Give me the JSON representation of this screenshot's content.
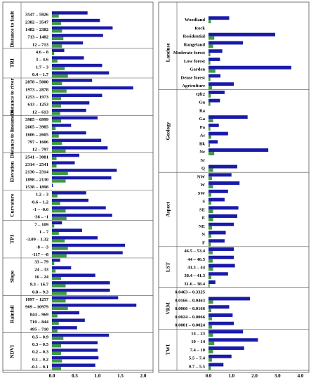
{
  "colors": {
    "series1": "#1a1aa8",
    "series2": "#3e9a3e",
    "frame": "#555555"
  },
  "chart_data": [
    {
      "type": "bar",
      "orientation": "horizontal",
      "xlim": [
        0,
        2.0
      ],
      "xticks": [
        "0.0",
        "0.5",
        "1.0",
        "1.5",
        "2.0"
      ],
      "series": [
        {},
        {}
      ],
      "groups": [
        {
          "name": "Distance to fault",
          "items": [
            {
              "label": "3547 – 5826",
              "values": [
                0.78,
                0.15
              ]
            },
            {
              "label": "2382 – 3547",
              "values": [
                1.05,
                0.2
              ]
            },
            {
              "label": "1482 – 2382",
              "values": [
                1.33,
                0.22
              ]
            },
            {
              "label": "713 – 1482",
              "values": [
                1.12,
                0.25
              ]
            },
            {
              "label": "12 – 713",
              "values": [
                0.68,
                0.22
              ]
            }
          ]
        },
        {
          "name": "TRI",
          "items": [
            {
              "label": "4.6 – 8",
              "values": [
                0.27,
                0.05
              ]
            },
            {
              "label": "3 – 4.6",
              "values": [
                0.7,
                0.12
              ]
            },
            {
              "label": "1.7 – 3",
              "values": [
                1.1,
                0.28
              ]
            },
            {
              "label": "0.4 – 1.7",
              "values": [
                1.25,
                0.35
              ]
            }
          ]
        },
        {
          "name": "Distance to river",
          "items": [
            {
              "label": "2878 – 5000",
              "values": [
                0.88,
                0.22
              ]
            },
            {
              "label": "1973 – 2878",
              "values": [
                1.78,
                0.32
              ]
            },
            {
              "label": "1253 – 1973",
              "values": [
                1.1,
                0.2
              ]
            },
            {
              "label": "613 – 1253",
              "values": [
                0.82,
                0.2
              ]
            },
            {
              "label": "12 – 613",
              "values": [
                0.75,
                0.18
              ]
            }
          ]
        },
        {
          "name": "Distance to lineament",
          "items": [
            {
              "label": "3985 – 6999",
              "values": [
                1.0,
                0.2
              ]
            },
            {
              "label": "2605 – 3985",
              "values": [
                0.42,
                0.08
              ]
            },
            {
              "label": "1606 – 2605",
              "values": [
                0.75,
                0.15
              ]
            },
            {
              "label": "797 – 1606",
              "values": [
                1.08,
                0.22
              ]
            },
            {
              "label": "12 – 797",
              "values": [
                1.22,
                0.3
              ]
            }
          ]
        },
        {
          "name": "Elevation",
          "items": [
            {
              "label": "2541 – 3081",
              "values": [
                0.6,
                0.1
              ]
            },
            {
              "label": "2314 – 2541",
              "values": [
                0.5,
                0.1
              ]
            },
            {
              "label": "2130 – 2314",
              "values": [
                1.42,
                0.35
              ]
            },
            {
              "label": "1898 – 2130",
              "values": [
                1.3,
                0.3
              ]
            },
            {
              "label": "1538 – 1898",
              "values": [
                0.02,
                0.0
              ]
            }
          ]
        },
        {
          "name": "Curvature",
          "items": [
            {
              "label": "1.2 – 3",
              "values": [
                0.75,
                0.12
              ]
            },
            {
              "label": "-0.6 – 1.2",
              "values": [
                0.8,
                0.18
              ]
            },
            {
              "label": "-1 – -0.6",
              "values": [
                1.18,
                0.3
              ]
            },
            {
              "label": "-36 – -1",
              "values": [
                1.32,
                0.32
              ]
            }
          ]
        },
        {
          "name": "TPI",
          "items": [
            {
              "label": "7 – 109",
              "values": [
                0.22,
                0.05
              ]
            },
            {
              "label": "1 – 7",
              "values": [
                0.66,
                0.15
              ]
            },
            {
              "label": "-3.09 – 1.32",
              "values": [
                1.0,
                0.28
              ]
            },
            {
              "label": "-8 – -3",
              "values": [
                1.6,
                0.35
              ]
            },
            {
              "label": "-117 – -8",
              "values": [
                1.55,
                0.32
              ]
            }
          ]
        },
        {
          "name": "Slope",
          "items": [
            {
              "label": "33 – 79",
              "values": [
                0.18,
                0.05
              ]
            },
            {
              "label": "24 – 33",
              "values": [
                0.42,
                0.08
              ]
            },
            {
              "label": "16 – 24",
              "values": [
                0.95,
                0.2
              ]
            },
            {
              "label": "9.3 – 16.7",
              "values": [
                1.27,
                0.3
              ]
            },
            {
              "label": "0.8 – 9.3",
              "values": [
                1.27,
                0.32
              ]
            }
          ]
        },
        {
          "name": "Rainfall",
          "items": [
            {
              "label": "1097 – 1257",
              "values": [
                1.45,
                0.3
              ]
            },
            {
              "label": "969 – 10979",
              "values": [
                1.85,
                0.35
              ]
            },
            {
              "label": "844 – 969",
              "values": [
                0.6,
                0.12
              ]
            },
            {
              "label": "710 – 844",
              "values": [
                0.72,
                0.15
              ]
            },
            {
              "label": "495 – 710",
              "values": [
                0.55,
                0.12
              ]
            }
          ]
        },
        {
          "name": "NDVI",
          "items": [
            {
              "label": "0.5 – 0.9",
              "values": [
                1.25,
                0.25
              ]
            },
            {
              "label": "0.3 – 0.5",
              "values": [
                1.0,
                0.2
              ]
            },
            {
              "label": "0.2 – 0.3",
              "values": [
                1.0,
                0.2
              ]
            },
            {
              "label": "0.1 – 0.2",
              "values": [
                1.02,
                0.22
              ]
            },
            {
              "label": "-0.1 – 0.1",
              "values": [
                0.95,
                0.2
              ]
            }
          ]
        }
      ]
    },
    {
      "type": "bar",
      "orientation": "horizontal",
      "xlim": [
        0,
        4.0
      ],
      "xticks": [
        "0.0",
        "1.0",
        "2.0",
        "3.0",
        "4.0"
      ],
      "series": [
        {},
        {}
      ],
      "groups": [
        {
          "name": "Landuse",
          "items": [
            {
              "label": "Woodland",
              "values": [
                0.9,
                0.1
              ]
            },
            {
              "label": "Rock",
              "values": [
                0.0,
                0.0
              ]
            },
            {
              "label": "Residential",
              "values": [
                2.9,
                0.25
              ]
            },
            {
              "label": "Rangeland",
              "values": [
                1.5,
                0.2
              ]
            },
            {
              "label": "Moderate forest",
              "values": [
                0.6,
                0.08
              ]
            },
            {
              "label": "Low forest",
              "values": [
                0.5,
                0.08
              ]
            },
            {
              "label": "Garden",
              "values": [
                3.6,
                0.3
              ]
            },
            {
              "label": "Dense forest",
              "values": [
                0.52,
                0.08
              ]
            },
            {
              "label": "Agriculture",
              "values": [
                1.1,
                0.15
              ]
            }
          ]
        },
        {
          "name": "Geology",
          "items": [
            {
              "label": "Qft2",
              "values": [
                0.7,
                0.1
              ]
            },
            {
              "label": "Gu",
              "values": [
                0.5,
                0.08
              ]
            },
            {
              "label": "Ra",
              "values": [
                0.0,
                0.0
              ]
            },
            {
              "label": "Ga",
              "values": [
                1.7,
                0.2
              ]
            },
            {
              "label": "Pa",
              "values": [
                0.45,
                0.08
              ]
            },
            {
              "label": "As",
              "values": [
                0.85,
                0.12
              ]
            },
            {
              "label": "Bk",
              "values": [
                0.4,
                0.06
              ]
            },
            {
              "label": "Ne",
              "values": [
                2.6,
                0.25
              ]
            },
            {
              "label": "Sr",
              "values": [
                0.0,
                0.0
              ]
            },
            {
              "label": "Q",
              "values": [
                1.25,
                0.2
              ]
            }
          ]
        },
        {
          "name": "Aspect",
          "items": [
            {
              "label": "NW",
              "values": [
                1.0,
                0.15
              ]
            },
            {
              "label": "W",
              "values": [
                1.35,
                0.2
              ]
            },
            {
              "label": "SW",
              "values": [
                0.85,
                0.12
              ]
            },
            {
              "label": "S",
              "values": [
                0.7,
                0.12
              ]
            },
            {
              "label": "SE",
              "values": [
                1.3,
                0.2
              ]
            },
            {
              "label": "E",
              "values": [
                1.25,
                0.2
              ]
            },
            {
              "label": "NE",
              "values": [
                1.1,
                0.15
              ]
            },
            {
              "label": "N",
              "values": [
                0.75,
                0.12
              ]
            },
            {
              "label": "F",
              "values": [
                0.7,
                0.1
              ]
            }
          ]
        },
        {
          "name": "LST",
          "items": [
            {
              "label": "46.5 – 53.4",
              "values": [
                1.1,
                0.18
              ]
            },
            {
              "label": "44 – 46.5",
              "values": [
                1.1,
                0.18
              ]
            },
            {
              "label": "41.3 – 44",
              "values": [
                1.15,
                0.2
              ]
            },
            {
              "label": "38.4 – 41.3",
              "values": [
                0.85,
                0.12
              ]
            },
            {
              "label": "31.6 – 38.4",
              "values": [
                0.3,
                0.05
              ]
            }
          ]
        },
        {
          "name": "VRM",
          "items": [
            {
              "label": "0.0463 – 0.3325",
              "values": [
                0.0,
                0.0
              ]
            },
            {
              "label": "0.0166 – 0.0463",
              "values": [
                1.8,
                0.2
              ]
            },
            {
              "label": "0.0066 – 0.0166",
              "values": [
                0.9,
                0.12
              ]
            },
            {
              "label": "0.0024 – 0.0066",
              "values": [
                1.05,
                0.15
              ]
            },
            {
              "label": "0.0001 – 0.0024",
              "values": [
                1.1,
                0.15
              ]
            }
          ]
        },
        {
          "name": "TWI",
          "items": [
            {
              "label": "14 – 23",
              "values": [
                1.5,
                0.2
              ]
            },
            {
              "label": "10 – 14",
              "values": [
                2.15,
                0.25
              ]
            },
            {
              "label": "7.4 – 10",
              "values": [
                1.55,
                0.2
              ]
            },
            {
              "label": "5.5 – 7.4",
              "values": [
                1.0,
                0.15
              ]
            },
            {
              "label": "0.7 – 5.5",
              "values": [
                0.65,
                0.1
              ]
            }
          ]
        }
      ]
    }
  ]
}
